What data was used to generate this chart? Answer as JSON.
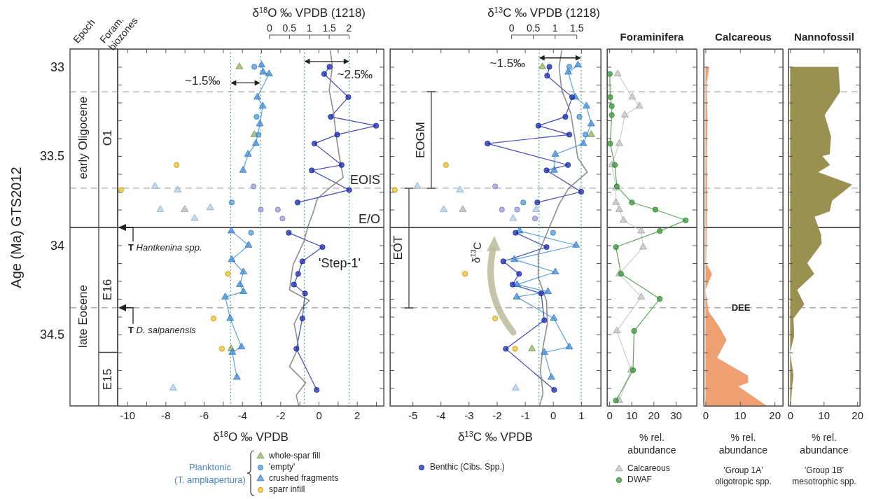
{
  "chart_data": [
    {
      "type": "scatter",
      "xlabel": "δ$^{18}$O ‰ VPDB",
      "ylabel": "Age (Ma) GTS2012",
      "x2label": "δ$^{18}$O ‰ VPDB (1218)",
      "xlim": [
        -10.5,
        3.4
      ],
      "xticks": [
        -10,
        {
          "value": -9,
          "label": null
        },
        -8,
        {
          "value": -7,
          "label": null
        },
        -6,
        {
          "value": -5,
          "label": null
        },
        -4,
        {
          "value": -3,
          "label": null
        },
        -2,
        {
          "value": -1,
          "label": null
        },
        0,
        {
          "value": 1,
          "label": null
        },
        2,
        {
          "value": 3,
          "label": null
        }
      ],
      "ylim": [
        34.9,
        32.9
      ],
      "yticks": [
        33,
        {
          "value": 33.1,
          "label": null
        },
        {
          "value": 33.2,
          "label": null
        },
        {
          "value": 33.3,
          "label": null
        },
        {
          "value": 33.4,
          "label": null
        },
        33.5,
        {
          "value": 33.6,
          "label": null
        },
        {
          "value": 33.7,
          "label": null
        },
        {
          "value": 33.8,
          "label": null
        },
        {
          "value": 33.9,
          "label": null
        },
        34,
        {
          "value": 34.1,
          "label": null
        },
        {
          "value": 34.2,
          "label": null
        },
        {
          "value": 34.3,
          "label": null
        },
        {
          "value": 34.4,
          "label": null
        },
        34.5,
        {
          "value": 34.6,
          "label": null
        },
        {
          "value": 34.7,
          "label": null
        },
        {
          "value": 34.8,
          "label": null
        }
      ],
      "x2lim": [
        -3.81,
        2.88
      ],
      "x2ticks": [
        0,
        0.5,
        1,
        1.5,
        2
      ],
      "legend": "bottom",
      "legend_title": "Planktonic (T. ampliapertura)",
      "series": [
        {
          "name": "whole-spar fill",
          "marker": "triangle",
          "color": "#8db55a",
          "x": [
            -4.14,
            -3.36,
            -4.57
          ],
          "values": [
            33.0,
            33.38,
            34.58
          ]
        },
        {
          "name": "'empty'",
          "marker": "circle",
          "color": "#4a9be0",
          "x": [
            -3.36,
            -3.24,
            -3.14,
            -4.54,
            -3.53
          ],
          "values": [
            33.0,
            33.28,
            33.38,
            33.76,
            33.93
          ]
        },
        {
          "name": "crushed fragments",
          "type": "line",
          "marker": "triangle",
          "color": "#3c8fe0",
          "x": [
            -2.98,
            -2.9,
            -2.59,
            -3.2,
            -2.92,
            -3.07,
            -3.28,
            -3.69,
            -3.95,
            null,
            -4.56,
            -3.66,
            -4.54,
            -3.93,
            -4.11,
            -3.93,
            -4.88,
            -4.62,
            -4.03,
            -4.51,
            -4.27
          ],
          "values": [
            32.99,
            33.03,
            33.04,
            33.17,
            33.22,
            33.32,
            33.43,
            33.49,
            33.58,
            null,
            33.92,
            34.0,
            34.08,
            34.15,
            34.22,
            34.26,
            34.29,
            34.41,
            34.57,
            34.6,
            34.74
          ]
        },
        {
          "name": "sparr infill",
          "marker": "circle",
          "color": "#f0c020",
          "x": [
            -7.42,
            -10.32,
            -4.74,
            -5.49,
            -5.05
          ],
          "values": [
            33.55,
            33.69,
            34.16,
            34.41,
            34.58
          ]
        },
        {
          "name": "Benthic (Cibs. Spp.)",
          "type": "line",
          "marker": "circle",
          "color": "#1a2cb8",
          "x": [
            0.57,
            0.29,
            1.55,
            0.63,
            3.0,
            0.97,
            -0.22,
            1.2,
            -0.36,
            1.6,
            -1.1,
            null,
            -1.56,
            0.2,
            -0.85,
            -1.07,
            -1.29,
            -0.71,
            -0.85,
            -1.16,
            -0.1
          ],
          "values": [
            33.0,
            33.04,
            33.17,
            33.28,
            33.33,
            33.38,
            33.43,
            33.55,
            33.58,
            33.69,
            33.76,
            null,
            33.93,
            34.01,
            34.09,
            34.16,
            34.22,
            34.27,
            34.41,
            34.58,
            34.81
          ]
        },
        {
          "marker": "circle",
          "color": "#9b9be0",
          "x": [
            -3.4,
            -3.02,
            -2.13,
            -1.89
          ],
          "values": [
            33.67,
            33.8,
            33.8,
            33.85
          ]
        },
        {
          "marker": "triangle",
          "color": "#a9d2f2",
          "x": [
            -8.55,
            -7.37,
            -8.27,
            -5.66,
            -6.48,
            -7.6
          ],
          "values": [
            33.67,
            33.69,
            33.8,
            33.79,
            33.85,
            34.8
          ]
        },
        {
          "marker": "triangle",
          "color": "#b8b8b8",
          "x": [
            -7.0
          ],
          "values": [
            33.8
          ]
        },
        {
          "type": "line",
          "axis": "x2",
          "marker": "none",
          "color": "#7a7a7a",
          "x": [
            1.54,
            1.59,
            1.51,
            1.62,
            1.68,
            1.77,
            1.86,
            1.51,
            1.21,
            1.1,
            0.98,
            0.87,
            0.6,
            0.51,
            1.01,
            0.83,
            0.63,
            0.74,
            0.51,
            0.92,
            0.68,
            0.74
          ],
          "values": [
            32.91,
            33.0,
            33.13,
            33.26,
            33.38,
            33.51,
            33.62,
            33.68,
            33.74,
            33.82,
            33.89,
            33.98,
            34.11,
            34.25,
            34.31,
            34.35,
            34.44,
            34.57,
            34.68,
            34.77,
            34.84,
            34.9
          ]
        }
      ],
      "ref_lines": [
        {
          "axis": "y",
          "value": 33.14,
          "color": "#aaaaaa",
          "line_style": "dashed"
        },
        {
          "axis": "y",
          "value": 33.68,
          "label": "EOIS",
          "color": "#aaaaaa",
          "line_style": "dashed"
        },
        {
          "axis": "y",
          "value": 33.9,
          "label": "E/O",
          "color": "#222222",
          "line_style": "solid"
        },
        {
          "axis": "y",
          "value": 34.35,
          "color": "#aaaaaa",
          "line_style": "dashed"
        },
        {
          "axis": "x",
          "value": -4.6,
          "color": "#5cb88a",
          "line_style": "dotted"
        },
        {
          "axis": "x",
          "value": -3.05,
          "color": "#5cb88a",
          "line_style": "dotted"
        },
        {
          "axis": "x",
          "value": -0.75,
          "color": "#5cb88a",
          "line_style": "dotted"
        },
        {
          "axis": "x",
          "value": 1.6,
          "color": "#5cb88a",
          "line_style": "dotted"
        }
      ],
      "annotations": [
        {
          "text": "~1.5‰",
          "x": -4.6,
          "y": 33.09
        },
        {
          "text": "~2.5‰",
          "x": 0.43,
          "y": 32.97
        },
        "'Step-1'",
        "T Hantkenina spp.",
        "T D. saipanensis",
        "Epoch",
        "Foram. biozones",
        "early Oligocene",
        "late Eocene",
        "O1",
        "E16",
        "E15"
      ]
    },
    {
      "type": "scatter",
      "xlabel": "δ$^{13}$C ‰ VPDB",
      "x2label": "δ$^{13}$C ‰ VPDB (1218)",
      "xlim": [
        -5.8,
        1.7
      ],
      "xticks": [
        -5,
        -4,
        -3,
        -2,
        -1,
        0,
        1
      ],
      "ylim": [
        34.9,
        32.9
      ],
      "yticks": [
        33,
        {
          "value": 33.1,
          "label": null
        },
        {
          "value": 33.2,
          "label": null
        },
        {
          "value": 33.3,
          "label": null
        },
        {
          "value": 33.4,
          "label": null
        },
        33.5,
        {
          "value": 33.6,
          "label": null
        },
        {
          "value": 33.7,
          "label": null
        },
        {
          "value": 33.8,
          "label": null
        },
        {
          "value": 33.9,
          "label": null
        },
        34,
        {
          "value": 34.1,
          "label": null
        },
        {
          "value": 34.2,
          "label": null
        },
        {
          "value": 34.3,
          "label": null
        },
        {
          "value": 34.4,
          "label": null
        },
        34.5,
        {
          "value": 34.6,
          "label": null
        },
        {
          "value": 34.7,
          "label": null
        },
        {
          "value": 34.8,
          "label": null
        }
      ],
      "x2lim": [
        -2.79,
        2.06
      ],
      "x2ticks": [
        0,
        0.5,
        1,
        1.5
      ],
      "tick_labels": "x",
      "series": [
        {
          "marker": "triangle",
          "color": "#8db55a",
          "x": [
            -0.38,
            1.36,
            -0.75
          ],
          "values": [
            33.0,
            33.38,
            34.58
          ]
        },
        {
          "marker": "circle",
          "color": "#4a9be0",
          "x": [
            0.58,
            0.94,
            1.15,
            -1.06,
            0.0
          ],
          "values": [
            33.0,
            33.28,
            33.38,
            33.76,
            33.93
          ]
        },
        {
          "type": "line",
          "marker": "triangle",
          "color": "#3c8fe0",
          "x": [
            0.89,
            0.54,
            0.79,
            1.19,
            1.36,
            1.08,
            0.08,
            0.04,
            null,
            -1.19,
            0.82,
            -1.38,
            0.08,
            -1.28,
            -0.18,
            -1.29,
            0.03,
            0.58,
            -0.31,
            -0.06
          ],
          "values": [
            32.99,
            33.03,
            33.17,
            33.22,
            33.32,
            33.43,
            33.49,
            33.58,
            null,
            33.92,
            34.0,
            34.08,
            34.15,
            34.22,
            34.26,
            34.29,
            34.41,
            34.57,
            34.6,
            34.74
          ]
        },
        {
          "marker": "circle",
          "color": "#f0c020",
          "x": [
            -3.81,
            -5.63,
            -3.13,
            -2.06,
            -1.35
          ],
          "values": [
            33.55,
            33.69,
            34.16,
            34.41,
            34.58
          ]
        },
        {
          "type": "line",
          "marker": "circle",
          "color": "#1a2cb8",
          "x": [
            -0.13,
            -0.21,
            0.68,
            0.44,
            -0.52,
            0.58,
            -2.33,
            0.53,
            -0.23,
            1.0,
            -0.56,
            null,
            -1.33,
            -0.23,
            -1.77,
            -1.21,
            -1.44,
            -0.42,
            -0.31,
            -1.68,
            0.04
          ],
          "values": [
            33.0,
            33.05,
            33.17,
            33.28,
            33.33,
            33.38,
            33.43,
            33.55,
            33.58,
            33.7,
            33.76,
            null,
            33.93,
            34.01,
            34.09,
            34.16,
            34.22,
            34.27,
            34.42,
            34.58,
            34.81
          ]
        },
        {
          "marker": "circle",
          "color": "#9b9be0",
          "x": [
            -2.06,
            -1.82,
            -1.28,
            -0.64
          ],
          "values": [
            33.67,
            33.8,
            33.8,
            33.85
          ]
        },
        {
          "marker": "triangle",
          "color": "#a9d2f2",
          "x": [
            -4.83,
            -3.31,
            -3.89,
            -0.6,
            -1.42,
            -1.33
          ],
          "values": [
            33.67,
            33.69,
            33.8,
            33.8,
            33.85,
            34.8
          ]
        },
        {
          "marker": "triangle",
          "color": "#b8b8b8",
          "x": [
            -3.21
          ],
          "values": [
            33.8
          ]
        },
        {
          "type": "line",
          "axis": "x2",
          "marker": "none",
          "color": "#7a7a7a",
          "x": [
            1.16,
            1.1,
            1.16,
            1.37,
            1.45,
            1.53,
            1.75,
            1.32,
            1.1,
            0.89,
            0.62,
            0.62,
            0.81,
            0.83,
            0.73,
            0.67,
            0.73,
            0.65
          ],
          "values": [
            32.91,
            33.0,
            33.13,
            33.26,
            33.38,
            33.51,
            33.59,
            33.68,
            33.77,
            33.89,
            34.05,
            34.18,
            34.31,
            34.44,
            34.57,
            34.7,
            34.83,
            34.9
          ]
        }
      ],
      "ref_lines": [
        {
          "axis": "y",
          "value": 33.14,
          "color": "#aaaaaa",
          "line_style": "dashed"
        },
        {
          "axis": "y",
          "value": 33.68,
          "color": "#aaaaaa",
          "line_style": "dashed"
        },
        {
          "axis": "y",
          "value": 33.9,
          "color": "#222222",
          "line_style": "solid"
        },
        {
          "axis": "y",
          "value": 34.35,
          "color": "#aaaaaa",
          "line_style": "dashed"
        },
        {
          "axis": "x",
          "value": -0.5,
          "color": "#5cb88a",
          "line_style": "dotted"
        },
        {
          "axis": "x",
          "value": 1.0,
          "color": "#5cb88a",
          "line_style": "dotted"
        }
      ],
      "annotations": [
        {
          "text": "~1.5‰",
          "x": 0.25,
          "y": 32.95
        },
        "δ$^{13}$C",
        "EOGM",
        "EOT"
      ]
    },
    {
      "type": "line",
      "title": "Foraminifera",
      "xlabel": "% rel. abundance",
      "xlim": [
        -1,
        39.5
      ],
      "xticks": [
        0,
        10,
        20,
        30
      ],
      "ylim": [
        34.9,
        32.9
      ],
      "yticks": [
        33,
        {
          "value": 33.1,
          "label": null
        },
        {
          "value": 33.2,
          "label": null
        },
        {
          "value": 33.3,
          "label": null
        },
        {
          "value": 33.4,
          "label": null
        },
        33.5,
        {
          "value": 33.6,
          "label": null
        },
        {
          "value": 33.7,
          "label": null
        },
        {
          "value": 33.8,
          "label": null
        },
        {
          "value": 33.9,
          "label": null
        },
        34,
        {
          "value": 34.1,
          "label": null
        },
        {
          "value": 34.2,
          "label": null
        },
        {
          "value": 34.3,
          "label": null
        },
        {
          "value": 34.4,
          "label": null
        },
        34.5,
        {
          "value": 34.6,
          "label": null
        },
        {
          "value": 34.7,
          "label": null
        },
        {
          "value": 34.8,
          "label": null
        }
      ],
      "tick_labels": "x",
      "legend": "bottom",
      "series": [
        {
          "name": "Calcareous",
          "marker": "triangle",
          "color": "#c4c4c4",
          "x": [
            3.8,
            10.4,
            13.6,
            7.0,
            4.5,
            1.1,
            3.0,
            3.0,
            4.5,
            6.4,
            14.4,
            15.3,
            4.5,
            14.4,
            3.4,
            9.8,
            4.5
          ],
          "values": [
            33.04,
            33.17,
            33.22,
            33.27,
            33.43,
            33.55,
            33.68,
            33.76,
            33.8,
            33.86,
            33.92,
            34.01,
            34.16,
            34.29,
            34.48,
            34.7,
            34.87
          ]
        },
        {
          "name": "DWAF",
          "marker": "circle",
          "color": "#3a9a3a",
          "x": [
            0.2,
            0.4,
            1.1,
            1.1,
            0.4,
            2.5,
            3.4,
            10.2,
            20.8,
            34.5,
            22.8,
            3.0,
            5.3,
            22.8,
            11.2,
            10.7,
            3.0
          ],
          "values": [
            33.04,
            33.17,
            33.22,
            33.27,
            33.43,
            33.55,
            33.67,
            33.76,
            33.8,
            33.86,
            33.92,
            34.01,
            34.16,
            34.3,
            34.48,
            34.7,
            34.87
          ]
        }
      ],
      "ref_lines": [
        {
          "axis": "y",
          "value": 33.14,
          "color": "#aaaaaa",
          "line_style": "dashed"
        },
        {
          "axis": "y",
          "value": 33.68,
          "color": "#aaaaaa",
          "line_style": "dashed"
        },
        {
          "axis": "y",
          "value": 33.9,
          "color": "#222222",
          "line_style": "solid"
        },
        {
          "axis": "y",
          "value": 34.35,
          "color": "#aaaaaa",
          "line_style": "dashed"
        }
      ]
    },
    {
      "type": "area",
      "orientation": "horizontal",
      "title": "Calcareous",
      "xlabel": "% rel. abundance",
      "xlim": [
        -0.5,
        22.4
      ],
      "xticks": [
        0,
        10,
        20
      ],
      "ylim": [
        34.9,
        32.9
      ],
      "yticks": [
        33,
        {
          "value": 33.1,
          "label": null
        },
        {
          "value": 33.2,
          "label": null
        },
        {
          "value": 33.3,
          "label": null
        },
        {
          "value": 33.4,
          "label": null
        },
        33.5,
        {
          "value": 33.6,
          "label": null
        },
        {
          "value": 33.7,
          "label": null
        },
        {
          "value": 33.8,
          "label": null
        },
        {
          "value": 33.9,
          "label": null
        },
        34,
        {
          "value": 34.1,
          "label": null
        },
        {
          "value": 34.2,
          "label": null
        },
        {
          "value": 34.3,
          "label": null
        },
        {
          "value": 34.4,
          "label": null
        },
        34.5,
        {
          "value": 34.6,
          "label": null
        },
        {
          "value": 34.7,
          "label": null
        },
        {
          "value": 34.8,
          "label": null
        }
      ],
      "tick_labels": "x",
      "series": [
        {
          "color": "#f0a070",
          "values": [
            1.1,
            0.3,
            0.6,
            0.4,
            0.5,
            0.4,
            0.3,
            0.2,
            1.9,
            0.0,
            0.9,
            4.1,
            6.1,
            3.4,
            12.3,
            12.4,
            9.5,
            17.8
          ],
          "x": [
            33.0,
            33.1,
            33.3,
            33.5,
            33.7,
            33.9,
            34.0,
            34.1,
            34.16,
            34.25,
            34.37,
            34.46,
            34.53,
            34.63,
            34.73,
            34.77,
            34.79,
            34.9
          ]
        }
      ],
      "ref_lines": [
        {
          "axis": "y",
          "value": 33.14,
          "color": "#aaaaaa",
          "line_style": "dashed"
        },
        {
          "axis": "y",
          "value": 33.68,
          "color": "#aaaaaa",
          "line_style": "dashed"
        },
        {
          "axis": "y",
          "value": 33.9,
          "color": "#222222",
          "line_style": "solid"
        },
        {
          "axis": "y",
          "value": 34.35,
          "color": "#aaaaaa",
          "line_style": "dashed"
        }
      ],
      "annotations": [
        "DEE",
        "'Group 1A' oligotropic spp."
      ]
    },
    {
      "type": "area",
      "orientation": "horizontal",
      "title": "Nannofossil",
      "xlabel": "% rel. abundance",
      "xlim": [
        -0.5,
        20.8
      ],
      "xticks": [
        0,
        10,
        20
      ],
      "ylim": [
        34.9,
        32.9
      ],
      "yticks": [
        33,
        {
          "value": 33.1,
          "label": null
        },
        {
          "value": 33.2,
          "label": null
        },
        {
          "value": 33.3,
          "label": null
        },
        {
          "value": 33.4,
          "label": null
        },
        33.5,
        {
          "value": 33.6,
          "label": null
        },
        {
          "value": 33.7,
          "label": null
        },
        {
          "value": 33.8,
          "label": null
        },
        {
          "value": 33.9,
          "label": null
        },
        34,
        {
          "value": 34.1,
          "label": null
        },
        {
          "value": 34.2,
          "label": null
        },
        {
          "value": 34.3,
          "label": null
        },
        {
          "value": 34.4,
          "label": null
        },
        34.5,
        {
          "value": 34.6,
          "label": null
        },
        {
          "value": 34.7,
          "label": null
        },
        {
          "value": 34.8,
          "label": null
        }
      ],
      "tick_labels": "x",
      "series": [
        {
          "color": "#9a9050",
          "values": [
            14.4,
            14.9,
            10.3,
            12.2,
            11.8,
            9.6,
            11.9,
            8.4,
            18.5,
            12.5,
            11.8,
            7.3,
            9.2,
            9.4,
            5.1,
            7.2,
            2.1,
            4.2,
            1.0,
            1.2,
            0,
            1.0,
            0.6,
            0.2
          ],
          "x": [
            33.0,
            33.14,
            33.27,
            33.39,
            33.49,
            33.5,
            33.55,
            33.59,
            33.66,
            33.75,
            33.81,
            33.84,
            33.94,
            33.99,
            34.1,
            34.16,
            34.25,
            34.33,
            34.41,
            34.51,
            34.6,
            34.73,
            34.79,
            34.9
          ]
        }
      ],
      "ref_lines": [
        {
          "axis": "y",
          "value": 33.14,
          "color": "#aaaaaa",
          "line_style": "dashed"
        },
        {
          "axis": "y",
          "value": 33.68,
          "color": "#aaaaaa",
          "line_style": "dashed"
        },
        {
          "axis": "y",
          "value": 33.9,
          "color": "#222222",
          "line_style": "solid"
        },
        {
          "axis": "y",
          "value": 34.35,
          "color": "#aaaaaa",
          "line_style": "dashed"
        }
      ],
      "annotations": [
        "'Group 1B' mesotrophic spp."
      ]
    }
  ]
}
